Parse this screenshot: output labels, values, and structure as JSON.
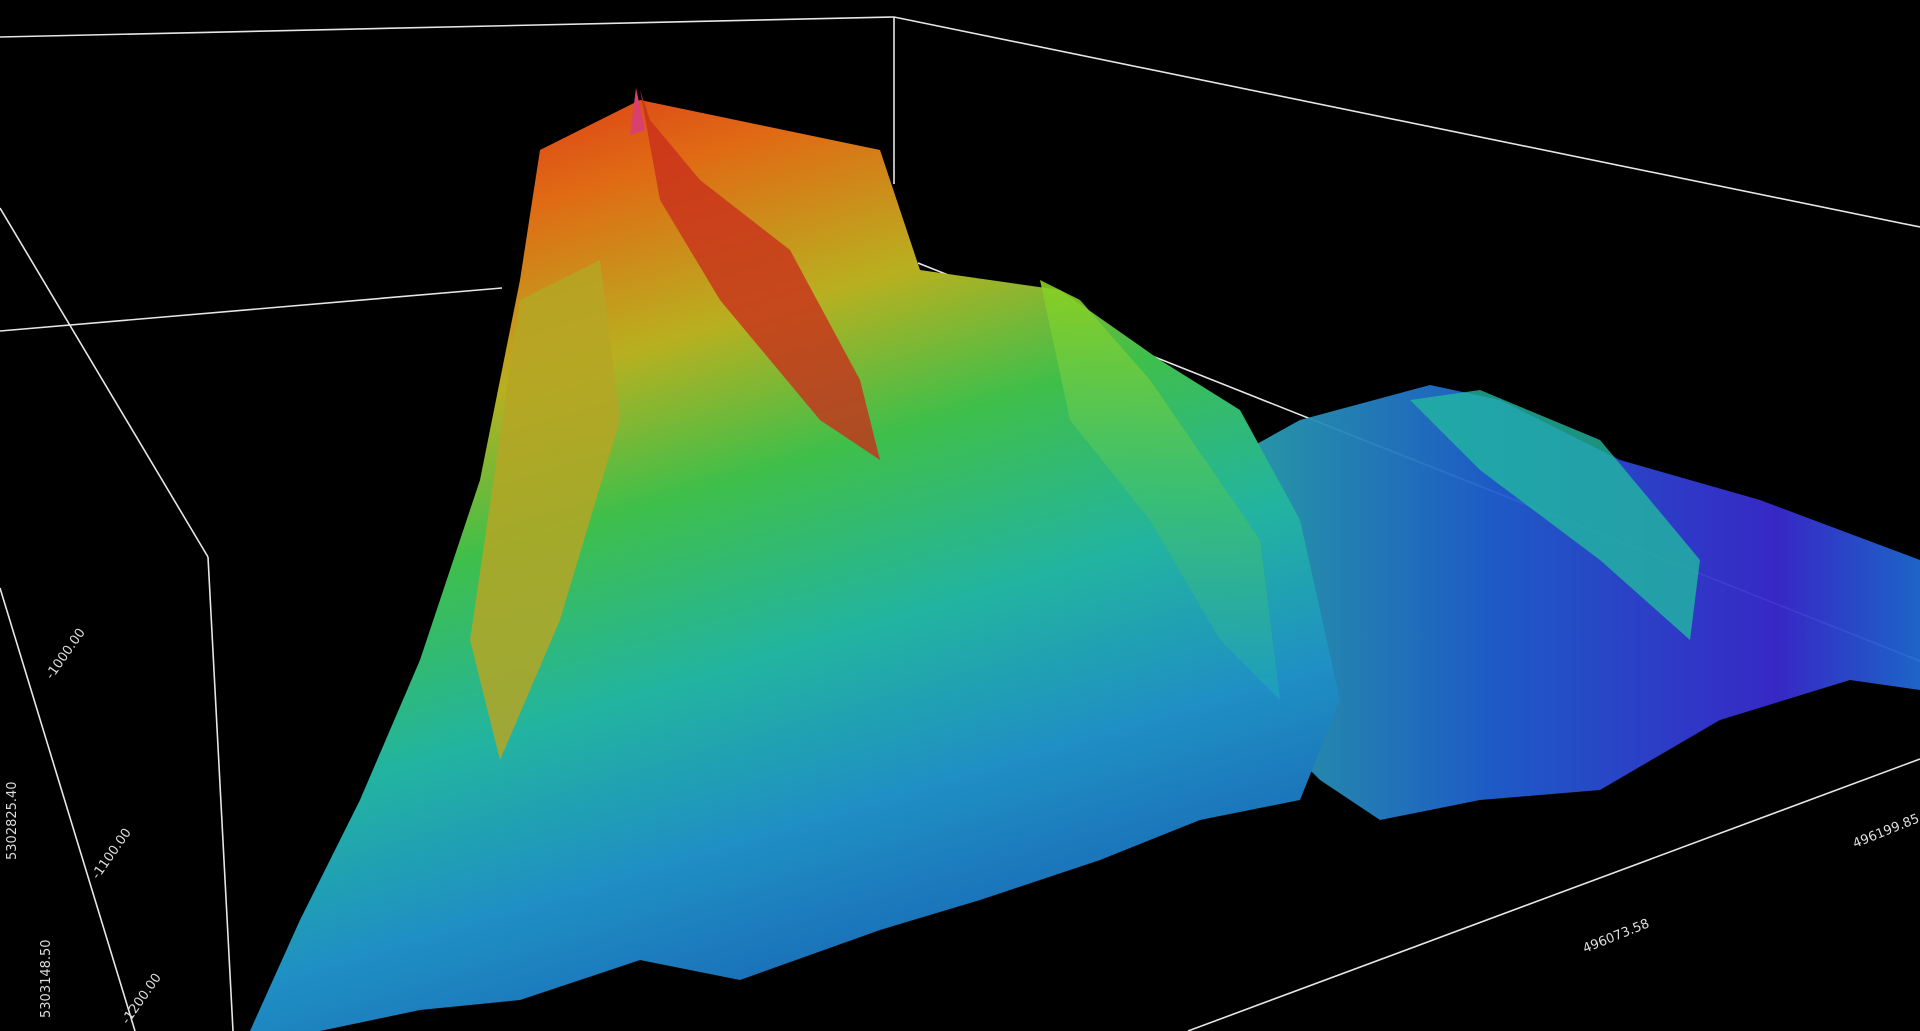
{
  "axis_labels": {
    "z": [
      "-1000.00",
      "-1100.00",
      "-1200.00"
    ],
    "y": [
      "5302825.40",
      "5303148.50"
    ],
    "x": [
      "496073.58",
      "496199.85"
    ]
  }
}
